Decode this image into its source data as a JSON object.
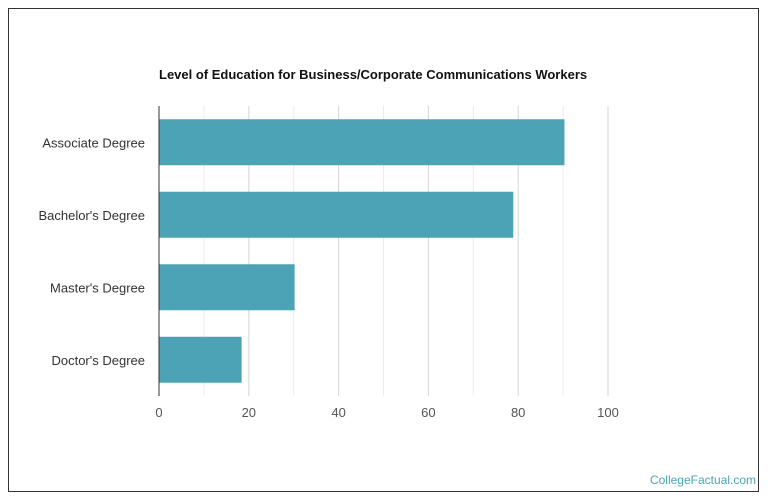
{
  "chart_data": {
    "type": "bar",
    "orientation": "horizontal",
    "title": "Level of Education for Business/Corporate Communications Workers",
    "xlabel": "",
    "ylabel": "",
    "categories": [
      "Associate Degree",
      "Bachelor's Degree",
      "Master's Degree",
      "Doctor's Degree"
    ],
    "values": [
      90.3,
      78.9,
      30.2,
      18.4
    ],
    "xlim": [
      0,
      100
    ],
    "xticks": [
      0,
      20,
      40,
      60,
      80,
      100
    ],
    "grid": true,
    "bar_color": "#4ba3b5"
  },
  "footer": {
    "watermark": "CollegeFactual.com"
  }
}
